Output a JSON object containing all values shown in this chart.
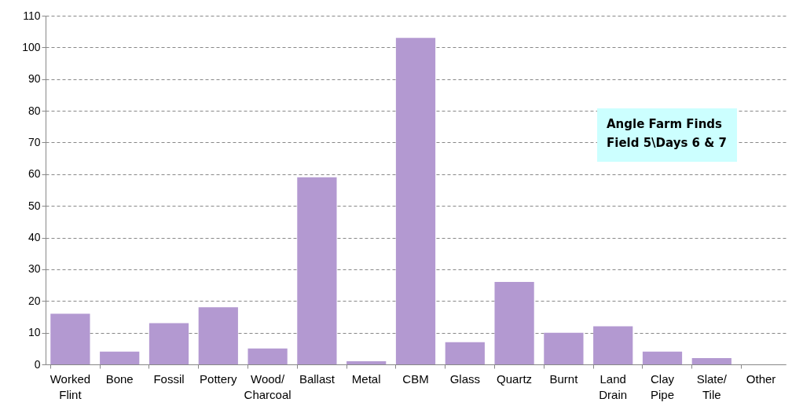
{
  "chart_data": {
    "type": "bar",
    "title": "Angle Farm Finds",
    "subtitle": "Field 5\\Days 6 & 7",
    "categories": [
      "Worked Flint",
      "Bone",
      "Fossil",
      "Pottery",
      "Wood/ Charcoal",
      "Ballast",
      "Metal",
      "CBM",
      "Glass",
      "Quartz",
      "Burnt",
      "Land Drain",
      "Clay Pipe",
      "Slate/ Tile",
      "Other"
    ],
    "values": [
      16,
      4,
      13,
      18,
      5,
      59,
      1,
      103,
      7,
      26,
      10,
      12,
      4,
      2,
      0
    ],
    "color": "#b399d1",
    "ylim": [
      0,
      110
    ],
    "yticks": [
      0,
      10,
      20,
      30,
      40,
      50,
      60,
      70,
      80,
      90,
      100,
      110
    ],
    "grid": "y"
  }
}
